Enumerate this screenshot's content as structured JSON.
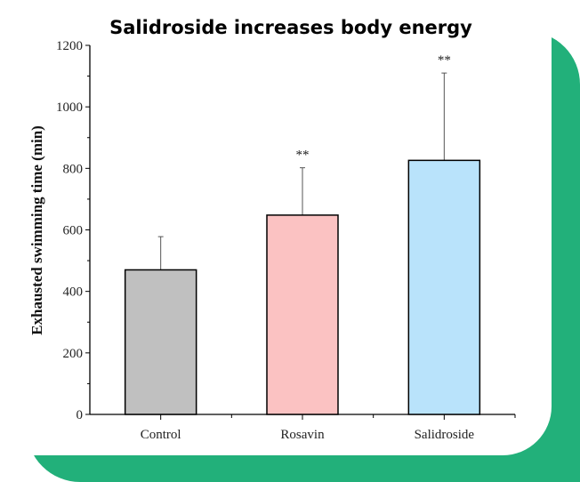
{
  "chart_data": {
    "type": "bar",
    "title": "Salidroside increases body energy",
    "xlabel": "",
    "ylabel": "Exhausted swimming time (min)",
    "ylim": [
      0,
      1200
    ],
    "yticks": [
      "0",
      "200",
      "400",
      "600",
      "800",
      "1000",
      "1200"
    ],
    "categories": [
      "Control",
      "Rosavin",
      "Salidroside"
    ],
    "values": [
      470,
      648,
      826
    ],
    "error_upper": [
      578,
      802,
      1110
    ],
    "annotations": [
      "",
      "**",
      "**"
    ],
    "colors": [
      "#c0c0c0",
      "#fbc2c2",
      "#b9e3fb"
    ],
    "grid": false
  },
  "decor": {
    "accent": "#22b07a"
  }
}
